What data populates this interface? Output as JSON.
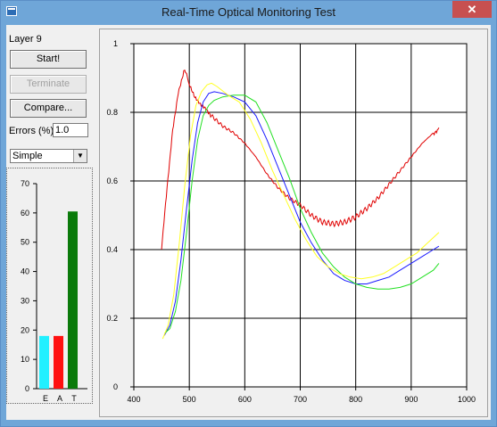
{
  "window": {
    "title": "Real-Time Optical Monitoring Test",
    "close_glyph": "✕",
    "icon": "app-icon"
  },
  "sidebar": {
    "layer_label": "Layer 9",
    "start_label": "Start!",
    "terminate_label": "Terminate",
    "compare_label": "Compare...",
    "errors_label": "Errors (%):",
    "errors_value": "1.0",
    "mode_selected": "Simple"
  },
  "colors": {
    "red": "#e00000",
    "blue": "#1a1aff",
    "green": "#22e022",
    "yellow": "#ffff22",
    "cyan_bar": "#22f0ff",
    "red_bar": "#ff1010",
    "dkgreen_bar": "#0a7a0a"
  },
  "chart_data": [
    {
      "type": "bar",
      "categories": [
        "E",
        "A",
        "T"
      ],
      "values": [
        18,
        18,
        60.5
      ],
      "ylim": [
        0,
        70
      ],
      "yticks": [
        0,
        10,
        20,
        30,
        40,
        50,
        60,
        70
      ],
      "grid": false
    },
    {
      "type": "line",
      "xlim": [
        400,
        1000
      ],
      "ylim": [
        0,
        1
      ],
      "xticks": [
        400,
        500,
        600,
        700,
        800,
        900,
        1000
      ],
      "yticks": [
        0,
        0.2,
        0.4,
        0.6,
        0.8,
        1
      ],
      "grid": true,
      "series": [
        {
          "color": "red",
          "x": [
            450,
            460,
            470,
            480,
            490,
            495,
            500,
            510,
            520,
            530,
            540,
            560,
            580,
            600,
            620,
            640,
            660,
            680,
            700,
            720,
            740,
            760,
            780,
            800,
            820,
            840,
            860,
            880,
            900,
            920,
            940,
            950
          ],
          "y": [
            0.4,
            0.58,
            0.75,
            0.86,
            0.92,
            0.91,
            0.88,
            0.84,
            0.82,
            0.81,
            0.79,
            0.76,
            0.74,
            0.71,
            0.67,
            0.62,
            0.58,
            0.55,
            0.53,
            0.5,
            0.48,
            0.475,
            0.48,
            0.495,
            0.52,
            0.55,
            0.59,
            0.63,
            0.67,
            0.71,
            0.74,
            0.755
          ]
        },
        {
          "color": "blue",
          "x": [
            455,
            465,
            475,
            485,
            495,
            505,
            515,
            525,
            535,
            545,
            560,
            580,
            600,
            620,
            640,
            660,
            680,
            700,
            720,
            740,
            760,
            780,
            800,
            820,
            840,
            860,
            880,
            900,
            920,
            940,
            950
          ],
          "y": [
            0.15,
            0.18,
            0.25,
            0.37,
            0.52,
            0.66,
            0.77,
            0.83,
            0.855,
            0.86,
            0.855,
            0.845,
            0.83,
            0.79,
            0.72,
            0.64,
            0.56,
            0.48,
            0.42,
            0.37,
            0.33,
            0.31,
            0.3,
            0.3,
            0.31,
            0.32,
            0.34,
            0.36,
            0.38,
            0.4,
            0.41
          ]
        },
        {
          "color": "green",
          "x": [
            455,
            465,
            475,
            485,
            495,
            505,
            515,
            525,
            535,
            545,
            560,
            580,
            600,
            620,
            640,
            660,
            680,
            700,
            720,
            740,
            760,
            780,
            800,
            820,
            840,
            860,
            880,
            900,
            920,
            940,
            950
          ],
          "y": [
            0.155,
            0.17,
            0.22,
            0.31,
            0.45,
            0.6,
            0.72,
            0.79,
            0.82,
            0.835,
            0.845,
            0.85,
            0.85,
            0.83,
            0.77,
            0.69,
            0.61,
            0.52,
            0.45,
            0.39,
            0.35,
            0.32,
            0.3,
            0.29,
            0.285,
            0.285,
            0.29,
            0.3,
            0.32,
            0.34,
            0.36
          ]
        },
        {
          "color": "yellow",
          "x": [
            452,
            462,
            472,
            482,
            492,
            502,
            512,
            522,
            532,
            540,
            550,
            570,
            590,
            610,
            630,
            650,
            670,
            690,
            710,
            730,
            750,
            770,
            790,
            810,
            830,
            850,
            870,
            890,
            910,
            930,
            950
          ],
          "y": [
            0.14,
            0.18,
            0.27,
            0.42,
            0.59,
            0.73,
            0.82,
            0.86,
            0.88,
            0.885,
            0.875,
            0.85,
            0.83,
            0.78,
            0.71,
            0.63,
            0.56,
            0.49,
            0.43,
            0.38,
            0.35,
            0.33,
            0.32,
            0.315,
            0.32,
            0.33,
            0.35,
            0.37,
            0.39,
            0.42,
            0.45
          ]
        }
      ]
    }
  ]
}
